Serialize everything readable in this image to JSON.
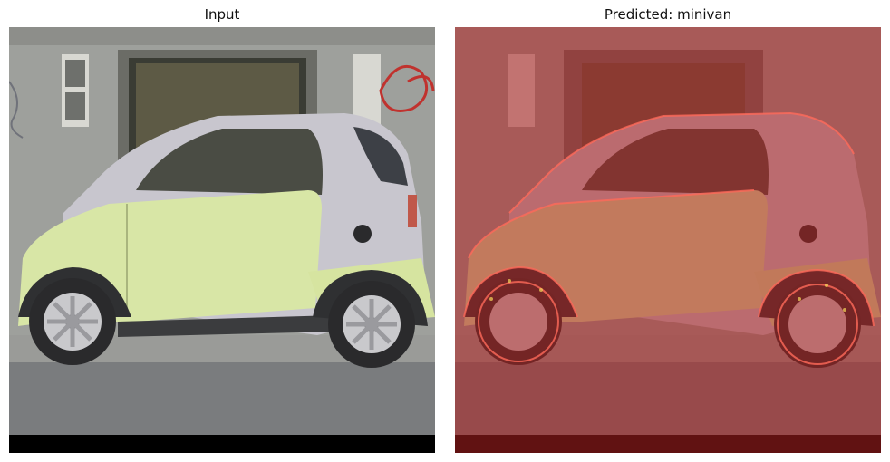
{
  "panels": [
    {
      "title": "Input"
    },
    {
      "title": "Predicted: minivan"
    }
  ],
  "colors": {
    "overlay": "#b02020",
    "car_body": "#d8e6a6",
    "car_silver": "#c8c6ce",
    "wall": "#9ea09c",
    "road": "#7a7c7e",
    "tire": "#2a2a2c"
  },
  "icons": [
    "car-illustration",
    "saliency-heatmap-overlay"
  ]
}
